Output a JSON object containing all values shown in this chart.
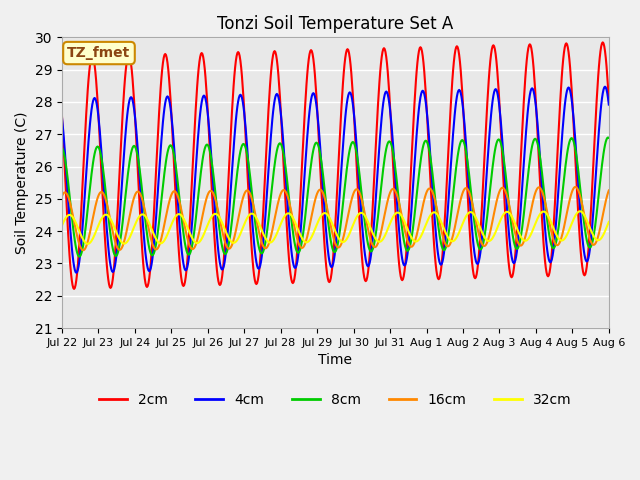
{
  "title": "Tonzi Soil Temperature Set A",
  "xlabel": "Time",
  "ylabel": "Soil Temperature (C)",
  "ylim": [
    21.0,
    30.0
  ],
  "yticks": [
    21.0,
    22.0,
    23.0,
    24.0,
    25.0,
    26.0,
    27.0,
    28.0,
    29.0,
    30.0
  ],
  "num_days": 15,
  "colors": {
    "2cm": "#ff0000",
    "4cm": "#0000ff",
    "8cm": "#00cc00",
    "16cm": "#ff8800",
    "32cm": "#ffff00"
  },
  "depths": [
    "2cm",
    "4cm",
    "8cm",
    "16cm",
    "32cm"
  ],
  "plot_bg": "#e8e8e8",
  "fig_bg": "#f0f0f0",
  "annotation_text": "TZ_fmet",
  "annotation_bg": "#ffffcc",
  "annotation_border": "#cc8800",
  "tick_labels": [
    "Jul 22",
    "Jul 23",
    "Jul 24",
    "Jul 25",
    "Jul 26",
    "Jul 27",
    "Jul 28",
    "Jul 29",
    "Jul 30",
    "Jul 31",
    "Aug 1",
    "Aug 2",
    "Aug 3",
    "Aug 4",
    "Aug 5",
    "Aug 6"
  ],
  "amplitudes": [
    3.6,
    2.7,
    1.7,
    0.9,
    0.45
  ],
  "means": [
    25.8,
    25.4,
    24.9,
    24.3,
    24.05
  ],
  "phase_offsets_hours": [
    0,
    1.5,
    3.5,
    6.0,
    9.0
  ],
  "trend_slopes": [
    0.03,
    0.025,
    0.02,
    0.012,
    0.008
  ],
  "linewidth": 1.5
}
